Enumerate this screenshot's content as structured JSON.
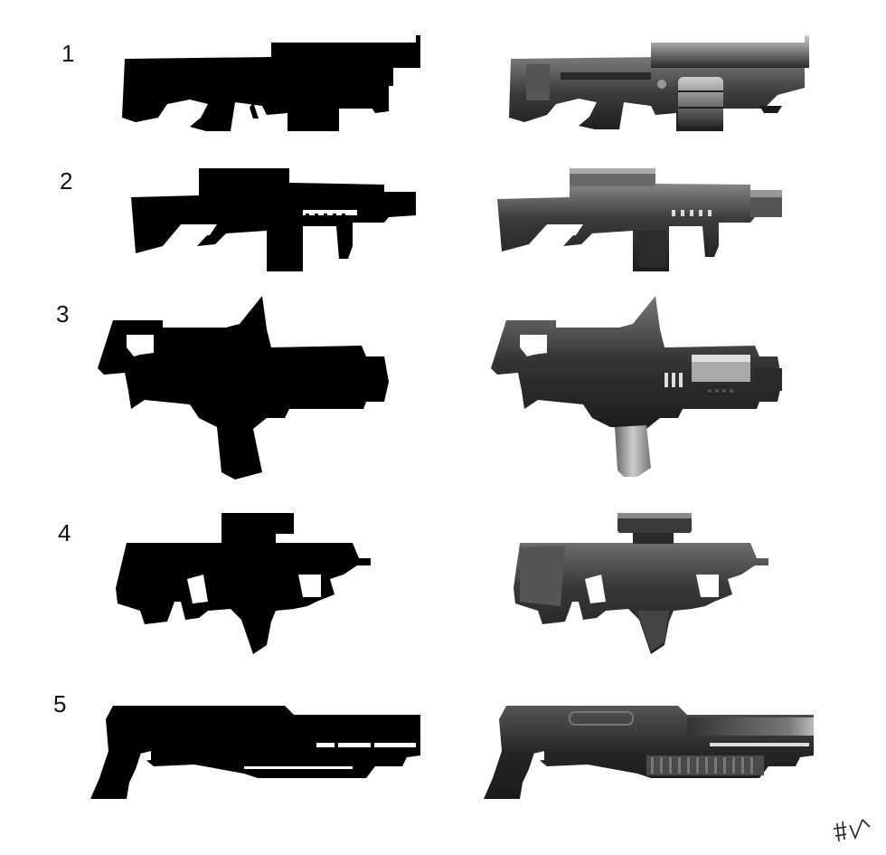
{
  "rows": [
    {
      "number": "1"
    },
    {
      "number": "2"
    },
    {
      "number": "3"
    },
    {
      "number": "4"
    },
    {
      "number": "5"
    }
  ],
  "colors": {
    "silhouette": "#000000",
    "render_dark": "#2a2a2a",
    "render_mid": "#4a4a4a",
    "render_light": "#8a8a8a",
    "render_highlight": "#c8c8c8",
    "background": "#ffffff"
  },
  "signature": {
    "icon": "artist-signature-icon"
  }
}
